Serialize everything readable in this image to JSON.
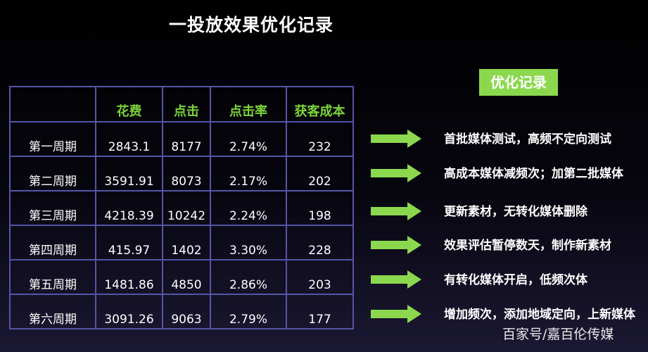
{
  "title": "一投放效果优化记录",
  "table": {
    "headers": [
      "",
      "花费",
      "点击",
      "点击率",
      "获客成本"
    ],
    "rows": [
      [
        "第一周期",
        "2843.1",
        "8177",
        "2.74%",
        "232"
      ],
      [
        "第二周期",
        "3591.91",
        "8073",
        "2.17%",
        "202"
      ],
      [
        "第三周期",
        "4218.39",
        "10242",
        "2.24%",
        "198"
      ],
      [
        "第四周期",
        "415.97",
        "1402",
        "3.30%",
        "228"
      ],
      [
        "第五周期",
        "1481.86",
        "4850",
        "2.86%",
        "203"
      ],
      [
        "第六周期",
        "3091.26",
        "9063",
        "2.79%",
        "177"
      ]
    ]
  },
  "optimization": {
    "badge": "优化记录",
    "steps": [
      "首批媒体测试，高频不定向测试",
      "高成本媒体减频次；加第二批媒体",
      "更新素材，无转化媒体删除",
      "效果评估暂停数天，制作新素材",
      "有转化媒体开启，低频次体",
      "增加频次，添加地域定向，上新媒体"
    ]
  },
  "watermark": "百家号/嘉百伦传媒",
  "colors": {
    "accent_green": "#8bd84e",
    "header_green": "#7cd43a",
    "grid_line": "#5555a8"
  },
  "icons": {
    "step_marker": "right-arrow-icon"
  }
}
